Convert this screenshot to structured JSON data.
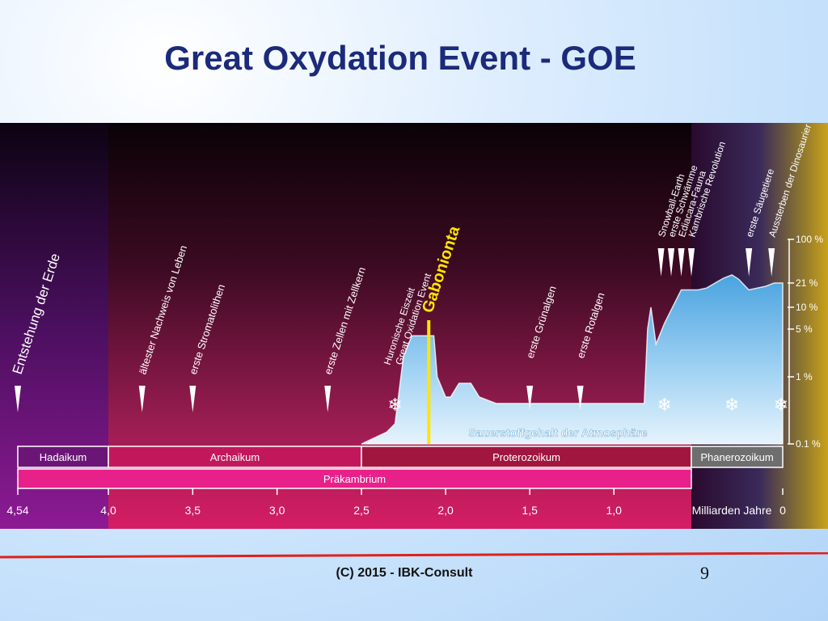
{
  "slide": {
    "title": "Great Oxydation Event - GOE",
    "footer": "(C) 2015 - IBK-Consult",
    "page_number": "9"
  },
  "colors": {
    "title": "#1b2a7a",
    "hadaikum_band": "#6b1677",
    "archaikum_band": "#c2185b",
    "proterozoikum_band": "#a1163f",
    "phanerozoikum_band": "#6e6e6e",
    "oxygen_fill": "#7fc1ec",
    "gabonionta_line": "#ffe600",
    "footer_line": "#e0201b"
  },
  "chart_data": {
    "type": "area",
    "x_axis": {
      "label": "Milliarden Jahre",
      "ticks": [
        "4,54",
        "4,0",
        "3,5",
        "3,0",
        "2,5",
        "2,0",
        "1,5",
        "1,0",
        "0"
      ],
      "range": [
        4.54,
        0
      ]
    },
    "y_axis": {
      "scale": "log",
      "ticks": [
        "100 %",
        "21 %",
        "10 %",
        "5 %",
        "1 %",
        "0.1 %"
      ]
    },
    "series": [
      {
        "name": "Sauerstoffgehalt der Atmosphäre",
        "x": [
          4.54,
          2.5,
          2.35,
          2.3,
          2.25,
          2.2,
          2.07,
          2.05,
          2.0,
          1.97,
          1.92,
          1.85,
          1.8,
          1.7,
          1.3,
          0.9,
          0.82,
          0.8,
          0.78,
          0.75,
          0.7,
          0.6,
          0.5,
          0.45,
          0.35,
          0.3,
          0.26,
          0.2,
          0.1,
          0.05,
          0
        ],
        "y": [
          null,
          0.1,
          0.15,
          0.2,
          2.0,
          4.0,
          4.0,
          1.0,
          0.5,
          0.5,
          0.8,
          0.8,
          0.5,
          0.4,
          0.4,
          0.4,
          0.4,
          5.0,
          10.0,
          3.0,
          6.0,
          17.0,
          17.0,
          18.0,
          25.0,
          28.0,
          24.0,
          17.0,
          19.0,
          21.0,
          21.0
        ]
      }
    ],
    "eras": [
      {
        "name": "Hadaikum",
        "start": 4.54,
        "end": 4.0
      },
      {
        "name": "Archaikum",
        "start": 4.0,
        "end": 2.5
      },
      {
        "name": "Proterozoikum",
        "start": 2.5,
        "end": 0.54
      },
      {
        "name": "Phanerozoikum",
        "start": 0.54,
        "end": 0
      }
    ],
    "eons": [
      {
        "name": "Präkambrium",
        "start": 4.54,
        "end": 0.54
      }
    ],
    "events": [
      {
        "label": "Entstehung der Erde",
        "x": 4.54
      },
      {
        "label": "ältester Nachweis von Leben",
        "x": 3.8
      },
      {
        "label": "erste Stromatolithen",
        "x": 3.5
      },
      {
        "label": "erste Zellen mit Zellkern",
        "x": 2.7
      },
      {
        "label": "Huronische Eiszeit",
        "x": 2.35
      },
      {
        "label": "Great Oxidation Event",
        "x": 2.28
      },
      {
        "label": "Gabonionta",
        "x": 2.1
      },
      {
        "label": "erste Grünalgen",
        "x": 1.5
      },
      {
        "label": "erste Rotalgen",
        "x": 1.2
      },
      {
        "label": "Snowball-Earth",
        "x": 0.72
      },
      {
        "label": "erste Schwämme",
        "x": 0.66
      },
      {
        "label": "Ediacara-Fauna",
        "x": 0.6
      },
      {
        "label": "Kambrische Revolution",
        "x": 0.54
      },
      {
        "label": "erste Säugetiere",
        "x": 0.2
      },
      {
        "label": "Aussterben der Dinosaurier",
        "x": 0.066
      }
    ],
    "snowflakes": [
      2.3,
      0.7,
      0.3,
      0.01
    ],
    "area_label": "Sauerstoffgehalt der Atmosphäre"
  }
}
